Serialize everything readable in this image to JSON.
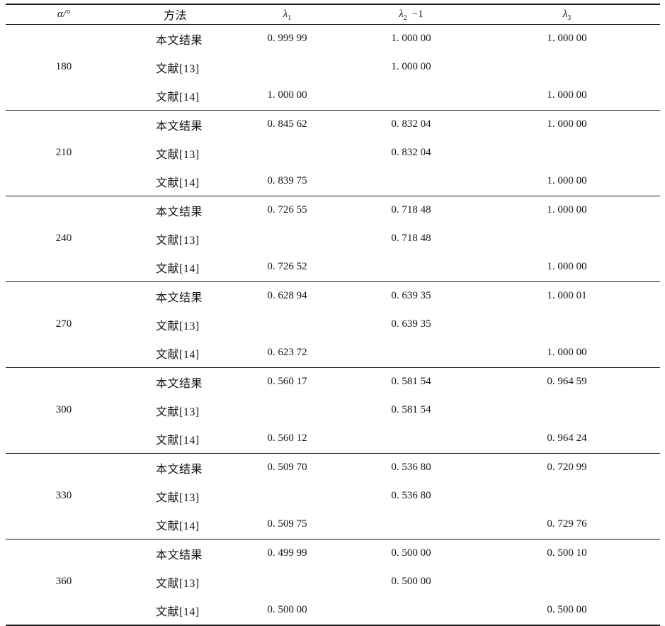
{
  "table": {
    "headers": {
      "alpha": "α/°",
      "method": "方法",
      "lambda": "λ",
      "lambda1_sub": "1",
      "lambda2_sub": "2",
      "lambda2_suffix": "−1",
      "lambda3_sub": "3"
    },
    "groups": [
      {
        "alpha": "180",
        "rows": [
          {
            "method": "本文结果",
            "l1": "0. 999 99",
            "l2": "1. 000 00",
            "l3": "1. 000 00"
          },
          {
            "method": "文献[13]",
            "l1": "",
            "l2": "1. 000 00",
            "l3": ""
          },
          {
            "method": "文献[14]",
            "l1": "1. 000 00",
            "l2": "",
            "l3": "1. 000 00"
          }
        ]
      },
      {
        "alpha": "210",
        "rows": [
          {
            "method": "本文结果",
            "l1": "0. 845 62",
            "l2": "0. 832 04",
            "l3": "1. 000 00"
          },
          {
            "method": "文献[13]",
            "l1": "",
            "l2": "0. 832 04",
            "l3": ""
          },
          {
            "method": "文献[14]",
            "l1": "0. 839 75",
            "l2": "",
            "l3": "1. 000 00"
          }
        ]
      },
      {
        "alpha": "240",
        "rows": [
          {
            "method": "本文结果",
            "l1": "0. 726 55",
            "l2": "0. 718 48",
            "l3": "1. 000 00"
          },
          {
            "method": "文献[13]",
            "l1": "",
            "l2": "0. 718 48",
            "l3": ""
          },
          {
            "method": "文献[14]",
            "l1": "0. 726 52",
            "l2": "",
            "l3": "1. 000 00"
          }
        ]
      },
      {
        "alpha": "270",
        "rows": [
          {
            "method": "本文结果",
            "l1": "0. 628 94",
            "l2": "0. 639 35",
            "l3": "1. 000 01"
          },
          {
            "method": "文献[13]",
            "l1": "",
            "l2": "0. 639 35",
            "l3": ""
          },
          {
            "method": "文献[14]",
            "l1": "0. 623 72",
            "l2": "",
            "l3": "1. 000 00"
          }
        ]
      },
      {
        "alpha": "300",
        "rows": [
          {
            "method": "本文结果",
            "l1": "0. 560 17",
            "l2": "0. 581 54",
            "l3": "0. 964 59"
          },
          {
            "method": "文献[13]",
            "l1": "",
            "l2": "0. 581 54",
            "l3": ""
          },
          {
            "method": "文献[14]",
            "l1": "0. 560 12",
            "l2": "",
            "l3": "0. 964 24"
          }
        ]
      },
      {
        "alpha": "330",
        "rows": [
          {
            "method": "本文结果",
            "l1": "0. 509 70",
            "l2": "0. 536 80",
            "l3": "0. 720 99"
          },
          {
            "method": "文献[13]",
            "l1": "",
            "l2": "0. 536 80",
            "l3": ""
          },
          {
            "method": "文献[14]",
            "l1": "0. 509 75",
            "l2": "",
            "l3": "0. 729 76"
          }
        ]
      },
      {
        "alpha": "360",
        "rows": [
          {
            "method": "本文结果",
            "l1": "0. 499 99",
            "l2": "0. 500 00",
            "l3": "0. 500 10"
          },
          {
            "method": "文献[13]",
            "l1": "",
            "l2": "0. 500 00",
            "l3": ""
          },
          {
            "method": "文献[14]",
            "l1": "0. 500 00",
            "l2": "",
            "l3": "0. 500 00"
          }
        ]
      }
    ]
  }
}
